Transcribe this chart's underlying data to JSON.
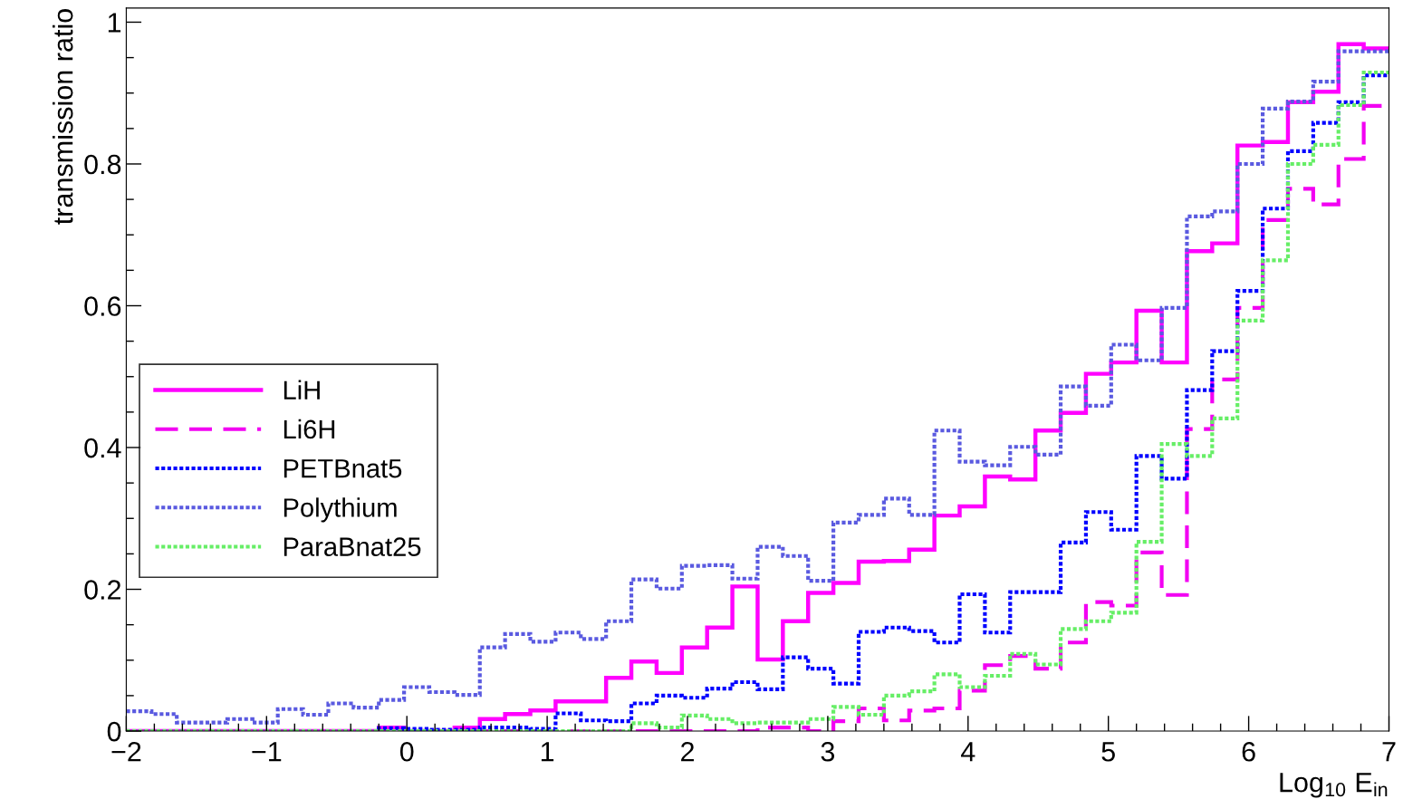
{
  "chart_data": {
    "type": "histogram",
    "xlabel": "Log$_{10}$ E$_{in}$",
    "ylabel": "transmission ratio",
    "bins": [
      -2,
      -1.82,
      -1.64,
      -1.46,
      -1.28,
      -1.1,
      -0.92,
      -0.74,
      -0.56,
      -0.38,
      -0.2,
      -0.02,
      0.16,
      0.34,
      0.52,
      0.7,
      0.88,
      1.06,
      1.24,
      1.42,
      1.6,
      1.78,
      1.96,
      2.14,
      2.32,
      2.5,
      2.68,
      2.86,
      3.04,
      3.22,
      3.4,
      3.58,
      3.76,
      3.94,
      4.12,
      4.3,
      4.48,
      4.66,
      4.84,
      5.02,
      5.2,
      5.38,
      5.56,
      5.74,
      5.92,
      6.1,
      6.28,
      6.46,
      6.64,
      6.82,
      7
    ],
    "series": [
      {
        "name": "LiH",
        "color": "#ff00ff",
        "line_style": "solid",
        "values": [
          0,
          0,
          0,
          0,
          0,
          0,
          0,
          0,
          0,
          0,
          0.005,
          0,
          0,
          0.005,
          0.017,
          0.024,
          0.029,
          0.042,
          0.042,
          0.075,
          0.098,
          0.082,
          0.118,
          0.146,
          0.204,
          0.101,
          0.155,
          0.195,
          0.209,
          0.239,
          0.24,
          0.256,
          0.304,
          0.317,
          0.359,
          0.355,
          0.424,
          0.449,
          0.504,
          0.52,
          0.593,
          0.52,
          0.677,
          0.688,
          0.826,
          0.831,
          0.887,
          0.902,
          0.969,
          0.963
        ]
      },
      {
        "name": "Li6H",
        "color": "#f200f2",
        "line_style": "dashed",
        "values": [
          0,
          0,
          0,
          0,
          0,
          0,
          0,
          0,
          0,
          0,
          0,
          0,
          0,
          0,
          0,
          0,
          0,
          0,
          0,
          0,
          0,
          0,
          0,
          0,
          0,
          0.005,
          0.005,
          0,
          0.014,
          0.032,
          0.015,
          0.029,
          0.032,
          0.057,
          0.093,
          0.106,
          0.088,
          0.125,
          0.182,
          0.177,
          0.252,
          0.192,
          0.426,
          0.496,
          0.597,
          0.721,
          0.765,
          0.743,
          0.807,
          0.882
        ]
      },
      {
        "name": "PETBnat5",
        "color": "#0000ff",
        "line_style": "dotted",
        "values": [
          0,
          0,
          0,
          0,
          0,
          0,
          0,
          0,
          0,
          0,
          0.004,
          0.003,
          0.002,
          0.002,
          0.005,
          0.005,
          0.003,
          0.025,
          0.015,
          0.014,
          0.039,
          0.05,
          0.047,
          0.06,
          0.069,
          0.059,
          0.104,
          0.088,
          0.067,
          0.14,
          0.146,
          0.141,
          0.125,
          0.193,
          0.139,
          0.196,
          0.196,
          0.266,
          0.309,
          0.284,
          0.388,
          0.356,
          0.481,
          0.536,
          0.621,
          0.737,
          0.818,
          0.858,
          0.887,
          0.925
        ]
      },
      {
        "name": "Polythium",
        "color": "#5a5ae0",
        "line_style": "dotted",
        "values": [
          0.028,
          0.024,
          0.012,
          0.012,
          0.017,
          0.012,
          0.031,
          0.023,
          0.039,
          0.033,
          0.044,
          0.062,
          0.055,
          0.051,
          0.118,
          0.137,
          0.126,
          0.139,
          0.13,
          0.155,
          0.214,
          0.201,
          0.233,
          0.234,
          0.215,
          0.26,
          0.247,
          0.212,
          0.294,
          0.305,
          0.328,
          0.305,
          0.424,
          0.38,
          0.375,
          0.401,
          0.39,
          0.486,
          0.459,
          0.545,
          0.523,
          0.597,
          0.726,
          0.733,
          0.8,
          0.878,
          0.888,
          0.916,
          0.959,
          0.959
        ]
      },
      {
        "name": "ParaBnat25",
        "color": "#66ee66",
        "line_style": "dotted",
        "values": [
          0,
          0,
          0,
          0,
          0,
          0,
          0,
          0,
          0,
          0,
          0,
          0,
          0,
          0,
          0,
          0,
          0,
          0,
          0,
          0,
          0.011,
          0.005,
          0.022,
          0.017,
          0.011,
          0.012,
          0.012,
          0.017,
          0.034,
          0.023,
          0.05,
          0.056,
          0.08,
          0.062,
          0.078,
          0.109,
          0.094,
          0.144,
          0.155,
          0.167,
          0.267,
          0.405,
          0.388,
          0.441,
          0.579,
          0.664,
          0.8,
          0.827,
          0.883,
          0.929
        ]
      }
    ],
    "xlim": [
      -2,
      7
    ],
    "ylim": [
      0,
      1.02
    ],
    "xticks": [
      {
        "value": -2,
        "label": "−2"
      },
      {
        "value": -1,
        "label": "−1"
      },
      0,
      1,
      2,
      3,
      4,
      5,
      6,
      7
    ],
    "yticks": [
      0,
      0.2,
      0.4,
      0.6,
      0.8,
      1
    ],
    "legend": "left",
    "grid": false
  }
}
